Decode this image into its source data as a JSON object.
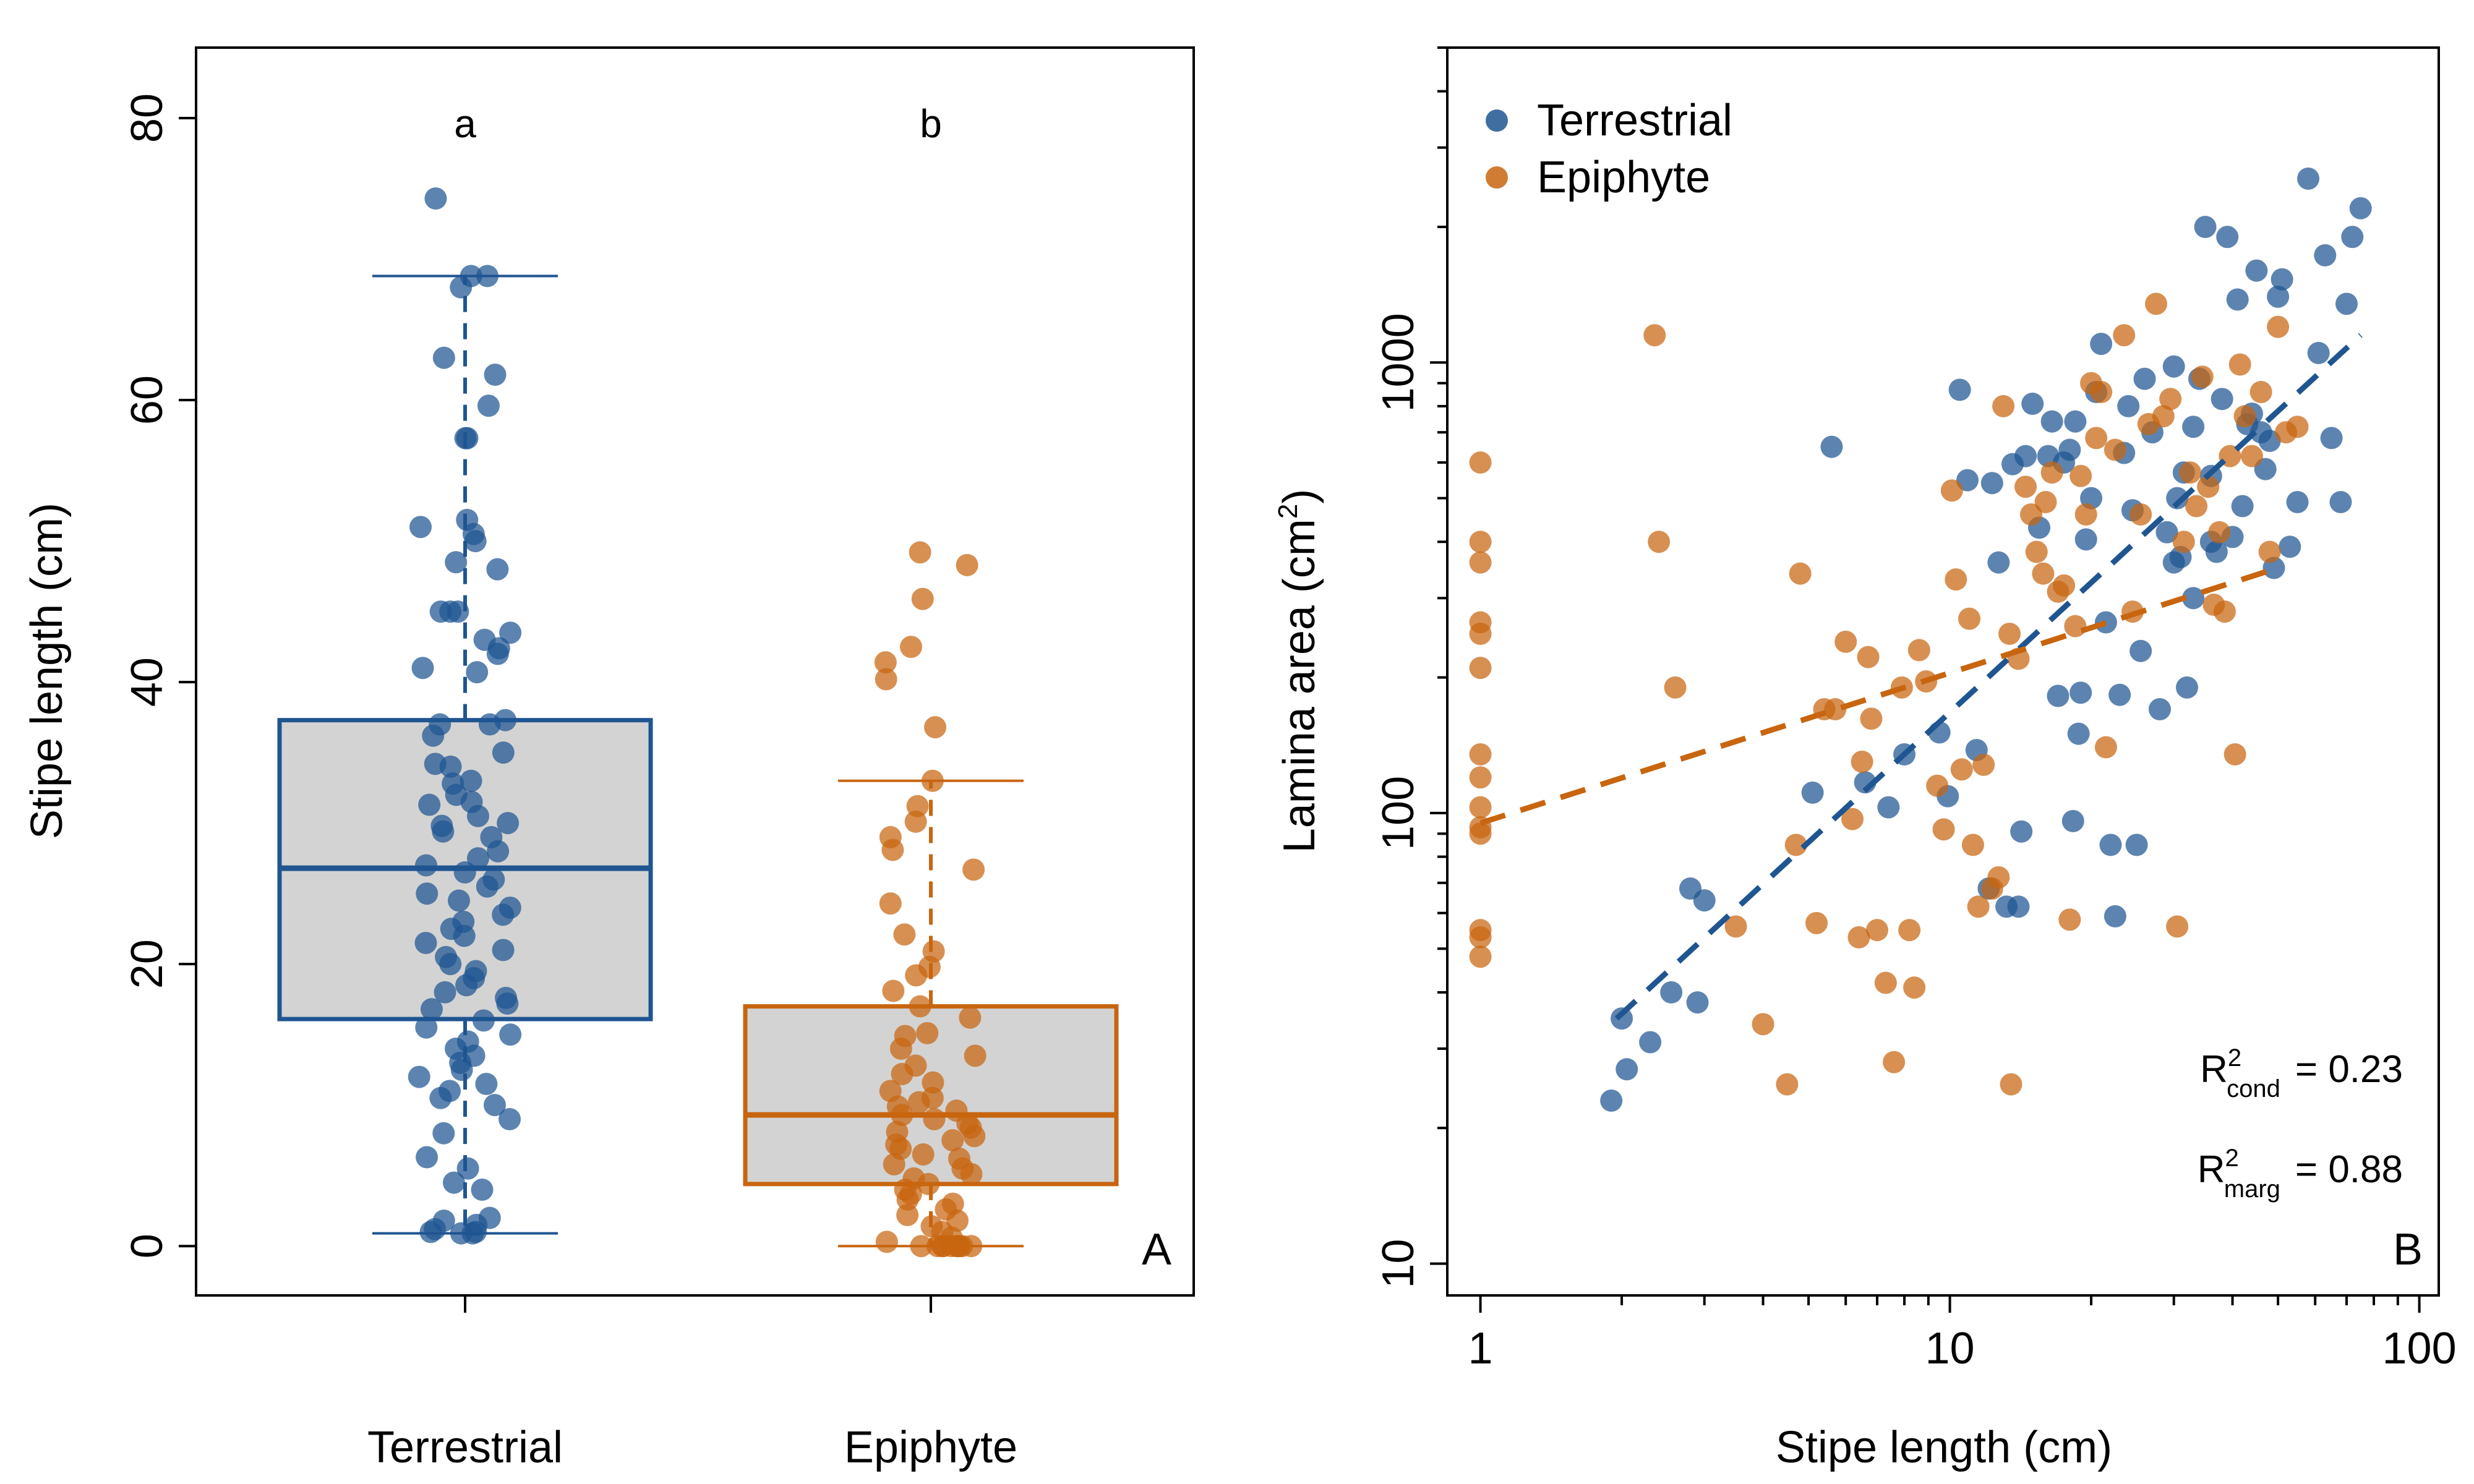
{
  "chart_data": [
    {
      "panel": "A",
      "type": "box",
      "xlabel": "",
      "ylabel": "Stipe length  (cm)",
      "ylim": [
        -3.5,
        85
      ],
      "yticks": [
        0,
        20,
        40,
        60,
        80
      ],
      "categories": [
        "Terrestrial",
        "Epiphyte"
      ],
      "significance_letters": [
        "a",
        "b"
      ],
      "colors": {
        "Terrestrial": "#1f5591",
        "Epiphyte": "#c8650f"
      },
      "boxes": [
        {
          "name": "Terrestrial",
          "min": 0.9,
          "q1": 16.1,
          "median": 26.8,
          "q3": 37.3,
          "max": 68.8
        },
        {
          "name": "Epiphyte",
          "min": 0,
          "q1": 4.4,
          "median": 9.3,
          "q3": 17.0,
          "max": 33.0
        }
      ],
      "points": {
        "Terrestrial": [
          74.3,
          68.8,
          68.8,
          68.0,
          63.0,
          61.8,
          59.6,
          57.3,
          57.3,
          51.5,
          51.0,
          50.5,
          50.0,
          48.5,
          48.0,
          45.0,
          45.0,
          45.0,
          43.5,
          43.0,
          42.4,
          42.0,
          41.0,
          40.7,
          37.3,
          37.0,
          37.0,
          36.2,
          35.0,
          34.2,
          34.0,
          33.0,
          32.8,
          32.0,
          31.5,
          31.3,
          30.5,
          30.0,
          29.8,
          29.4,
          29.0,
          28.0,
          27.5,
          27.0,
          26.5,
          26.0,
          25.5,
          25.0,
          24.5,
          24.0,
          23.5,
          23.0,
          22.5,
          22.0,
          21.5,
          21.0,
          20.5,
          20.0,
          19.5,
          19.0,
          18.5,
          18.0,
          17.6,
          17.2,
          16.8,
          16.0,
          15.5,
          15.0,
          14.5,
          14.0,
          13.5,
          13.0,
          12.5,
          12.0,
          11.5,
          11.0,
          10.5,
          10.0,
          9.0,
          8.0,
          6.3,
          5.5,
          4.5,
          4.0,
          2.0,
          1.5,
          1.0,
          1.0,
          0.9,
          0.9,
          1.2,
          1.8
        ],
        "Epiphyte": [
          49.2,
          48.3,
          45.9,
          42.5,
          41.4,
          40.2,
          36.8,
          33.0,
          31.2,
          30.1,
          29.0,
          28.1,
          26.7,
          24.3,
          22.1,
          20.9,
          19.8,
          19.2,
          18.1,
          17.0,
          16.2,
          15.1,
          14.9,
          14.0,
          13.5,
          12.8,
          12.2,
          11.6,
          11.0,
          10.5,
          10.2,
          9.9,
          9.6,
          9.3,
          9.0,
          8.7,
          8.4,
          8.1,
          7.8,
          7.5,
          7.2,
          6.9,
          6.5,
          6.2,
          5.8,
          5.5,
          5.1,
          4.8,
          4.4,
          4.0,
          3.7,
          3.3,
          3.0,
          2.6,
          2.2,
          1.8,
          1.4,
          1.0,
          0.6,
          0.3,
          0.0,
          0.0,
          0.0,
          0.0,
          0.0,
          0.0,
          0.0,
          0.0,
          0.0,
          0.0
        ]
      },
      "panel_label": "A"
    },
    {
      "panel": "B",
      "type": "scatter",
      "xlabel": "Stipe length  (cm)",
      "ylabel": "Lamina area  (cm",
      "ylabel_sup": "2",
      "ylabel_end": ")",
      "xscale": "log",
      "yscale": "log",
      "xlim": [
        0.85,
        110
      ],
      "ylim": [
        8.5,
        5000
      ],
      "xticks": [
        1,
        10,
        100
      ],
      "xtick_labels": [
        "1",
        "10",
        "100"
      ],
      "yticks": [
        10,
        100,
        1000
      ],
      "ytick_labels": [
        "10",
        "100",
        "1000"
      ],
      "legend_placement": "top-left",
      "panel_label": "B",
      "stats": [
        {
          "symbol": "R",
          "sup": "2",
          "sub": "cond",
          "value": "=  0.23"
        },
        {
          "symbol": "R",
          "sup": "2",
          "sub": "marg",
          "value": "=  0.88"
        }
      ],
      "series": [
        {
          "name": "Terrestrial",
          "color": "#1f5591",
          "fit": {
            "x1": 1.95,
            "y1": 35,
            "x2": 75,
            "y2": 1150
          },
          "points": [
            [
              1.9,
              23
            ],
            [
              2.0,
              35
            ],
            [
              2.05,
              27
            ],
            [
              2.3,
              31
            ],
            [
              2.55,
              40
            ],
            [
              2.8,
              68
            ],
            [
              3.0,
              64
            ],
            [
              2.9,
              38
            ],
            [
              5.1,
              111
            ],
            [
              5.6,
              650
            ],
            [
              6.6,
              117
            ],
            [
              7.4,
              103
            ],
            [
              8.0,
              135
            ],
            [
              9.5,
              151
            ],
            [
              9.9,
              109
            ],
            [
              10.5,
              870
            ],
            [
              10.9,
              548
            ],
            [
              11.4,
              138
            ],
            [
              12.1,
              68
            ],
            [
              12.3,
              540
            ],
            [
              12.7,
              360
            ],
            [
              13.2,
              62
            ],
            [
              13.6,
              595
            ],
            [
              14.0,
              62
            ],
            [
              14.2,
              91
            ],
            [
              14.5,
              620
            ],
            [
              15.0,
              810
            ],
            [
              15.5,
              430
            ],
            [
              16.2,
              620
            ],
            [
              16.5,
              740
            ],
            [
              17.0,
              182
            ],
            [
              17.5,
              600
            ],
            [
              18.0,
              640
            ],
            [
              18.3,
              96
            ],
            [
              18.5,
              740
            ],
            [
              18.8,
              150
            ],
            [
              19.0,
              185
            ],
            [
              19.5,
              405
            ],
            [
              20.0,
              500
            ],
            [
              20.5,
              860
            ],
            [
              21.0,
              1100
            ],
            [
              21.5,
              265
            ],
            [
              22.0,
              85
            ],
            [
              22.5,
              59
            ],
            [
              23.0,
              183
            ],
            [
              23.5,
              630
            ],
            [
              24.0,
              800
            ],
            [
              24.5,
              470
            ],
            [
              25.0,
              85
            ],
            [
              25.5,
              229
            ],
            [
              26.0,
              920
            ],
            [
              27.0,
              700
            ],
            [
              28.0,
              170
            ],
            [
              29.0,
              420
            ],
            [
              30.0,
              980
            ],
            [
              30.5,
              500
            ],
            [
              31.0,
              370
            ],
            [
              31.5,
              570
            ],
            [
              32.0,
              190
            ],
            [
              33.0,
              720
            ],
            [
              34.0,
              920
            ],
            [
              35.0,
              2000
            ],
            [
              36.0,
              400
            ],
            [
              37.0,
              380
            ],
            [
              38.0,
              830
            ],
            [
              39.0,
              1900
            ],
            [
              40.0,
              410
            ],
            [
              41.0,
              1380
            ],
            [
              42.0,
              480
            ],
            [
              43.0,
              730
            ],
            [
              44.0,
              770
            ],
            [
              45.0,
              1600
            ],
            [
              46.0,
              700
            ],
            [
              47.0,
              580
            ],
            [
              48.0,
              670
            ],
            [
              49.0,
              350
            ],
            [
              50.0,
              1400
            ],
            [
              51.0,
              1530
            ],
            [
              53.0,
              390
            ],
            [
              55.0,
              490
            ],
            [
              58.0,
              2560
            ],
            [
              61.0,
              1050
            ],
            [
              63.0,
              1730
            ],
            [
              65.0,
              680
            ],
            [
              68.0,
              490
            ],
            [
              70.0,
              1350
            ],
            [
              72.0,
              1900
            ],
            [
              75.0,
              2200
            ],
            [
              30.0,
              360
            ],
            [
              33.0,
              300
            ],
            [
              36.0,
              560
            ]
          ]
        },
        {
          "name": "Epiphyte",
          "color": "#c8650f",
          "fit": {
            "x1": 1.0,
            "y1": 95,
            "x2": 50,
            "y2": 350
          },
          "points": [
            [
              1.0,
              600
            ],
            [
              1.0,
              400
            ],
            [
              1.0,
              360
            ],
            [
              1.0,
              265
            ],
            [
              1.0,
              250
            ],
            [
              1.0,
              210
            ],
            [
              1.0,
              135
            ],
            [
              1.0,
              120
            ],
            [
              1.0,
              103
            ],
            [
              1.0,
              93
            ],
            [
              1.0,
              90
            ],
            [
              1.0,
              55
            ],
            [
              1.0,
              53
            ],
            [
              1.0,
              48
            ],
            [
              2.35,
              1150
            ],
            [
              2.4,
              400
            ],
            [
              2.6,
              190
            ],
            [
              3.5,
              56
            ],
            [
              4.0,
              34
            ],
            [
              4.5,
              25
            ],
            [
              4.7,
              85
            ],
            [
              4.8,
              340
            ],
            [
              5.2,
              57
            ],
            [
              5.4,
              170
            ],
            [
              5.7,
              170
            ],
            [
              6.0,
              240
            ],
            [
              6.2,
              97
            ],
            [
              6.4,
              53
            ],
            [
              6.7,
              222
            ],
            [
              6.8,
              162
            ],
            [
              7.0,
              55
            ],
            [
              7.3,
              42
            ],
            [
              7.6,
              28
            ],
            [
              7.9,
              190
            ],
            [
              8.2,
              55
            ],
            [
              8.4,
              41
            ],
            [
              8.6,
              230
            ],
            [
              8.9,
              196
            ],
            [
              9.4,
              115
            ],
            [
              9.7,
              92
            ],
            [
              10.1,
              520
            ],
            [
              10.3,
              330
            ],
            [
              10.6,
              125
            ],
            [
              11.0,
              270
            ],
            [
              11.2,
              85
            ],
            [
              11.5,
              62
            ],
            [
              11.8,
              128
            ],
            [
              12.3,
              68
            ],
            [
              12.7,
              72
            ],
            [
              13.0,
              800
            ],
            [
              13.4,
              250
            ],
            [
              14.0,
              220
            ],
            [
              14.5,
              530
            ],
            [
              14.9,
              460
            ],
            [
              15.3,
              380
            ],
            [
              15.8,
              340
            ],
            [
              16.0,
              490
            ],
            [
              16.5,
              570
            ],
            [
              17.0,
              310
            ],
            [
              17.5,
              320
            ],
            [
              18.0,
              58
            ],
            [
              18.5,
              260
            ],
            [
              19.0,
              560
            ],
            [
              19.5,
              460
            ],
            [
              20.0,
              900
            ],
            [
              20.5,
              680
            ],
            [
              21.0,
              860
            ],
            [
              21.5,
              140
            ],
            [
              22.5,
              640
            ],
            [
              23.5,
              1150
            ],
            [
              24.5,
              280
            ],
            [
              25.5,
              460
            ],
            [
              26.5,
              730
            ],
            [
              27.5,
              1350
            ],
            [
              28.5,
              760
            ],
            [
              29.5,
              830
            ],
            [
              30.5,
              56
            ],
            [
              31.5,
              400
            ],
            [
              32.5,
              570
            ],
            [
              33.5,
              480
            ],
            [
              34.5,
              930
            ],
            [
              35.5,
              530
            ],
            [
              36.5,
              290
            ],
            [
              37.5,
              420
            ],
            [
              38.5,
              280
            ],
            [
              39.5,
              620
            ],
            [
              40.5,
              135
            ],
            [
              41.5,
              990
            ],
            [
              42.5,
              760
            ],
            [
              44.0,
              620
            ],
            [
              46.0,
              860
            ],
            [
              48.0,
              380
            ],
            [
              50.0,
              1200
            ],
            [
              52.0,
              700
            ],
            [
              55.0,
              720
            ],
            [
              13.5,
              25
            ],
            [
              6.5,
              130
            ]
          ]
        }
      ]
    }
  ],
  "xlabel_panel_a_categories": [
    "Terrestrial",
    "Epiphyte"
  ]
}
